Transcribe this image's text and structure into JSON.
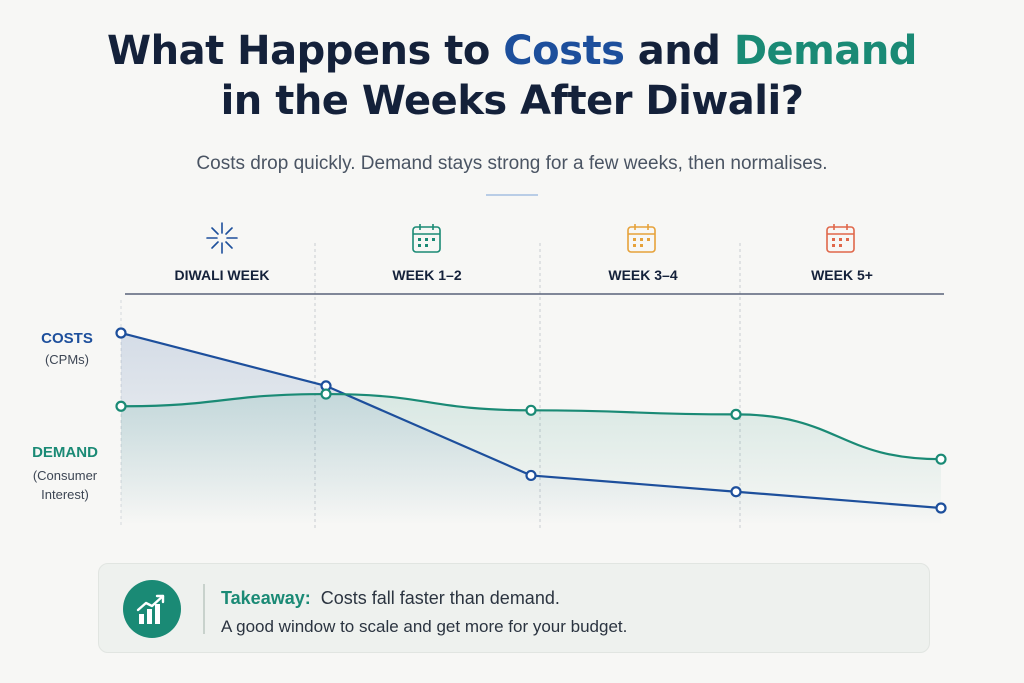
{
  "header": {
    "title_part1": "What Happens to ",
    "title_costs": "Costs",
    "title_and": " and ",
    "title_demand": "Demand",
    "title_line2": "in the Weeks After Diwali?",
    "subtitle": "Costs drop quickly. Demand stays strong for a few weeks, then normalises."
  },
  "phases": [
    {
      "label": "DIWALI WEEK",
      "icon": "sparkle-icon",
      "color": "#1d4f9c"
    },
    {
      "label": "WEEK 1–2",
      "icon": "calendar-icon",
      "color": "#1a8a75"
    },
    {
      "label": "WEEK 3–4",
      "icon": "calendar-icon",
      "color": "#e6a23a"
    },
    {
      "label": "WEEK 5+",
      "icon": "calendar-icon",
      "color": "#e0674a"
    }
  ],
  "chart_data": {
    "type": "line",
    "categories": [
      "DIWALI WEEK",
      "WEEK 1–2",
      "WEEK 3–4",
      "WEEK 5+"
    ],
    "x": [
      0,
      1,
      2,
      3,
      4
    ],
    "y_scale": "relative (unlabelled)",
    "ylim": [
      0,
      100
    ],
    "grid": false,
    "legend": "left",
    "series": [
      {
        "name": "COSTS",
        "sublabel": "(CPMs)",
        "color": "#1d4f9c",
        "values": [
          100,
          74,
          30,
          22,
          14
        ]
      },
      {
        "name": "DEMAND",
        "sublabel": "(Consumer Interest)",
        "color": "#1a8a75",
        "values": [
          64,
          70,
          62,
          60,
          38
        ]
      }
    ]
  },
  "takeaway": {
    "lead": "Takeaway:",
    "line1": "Costs fall faster than demand.",
    "line2": "A good window to scale and get more for your budget.",
    "icon": "chart-trend-up-icon",
    "accent": "#1a8a75"
  }
}
